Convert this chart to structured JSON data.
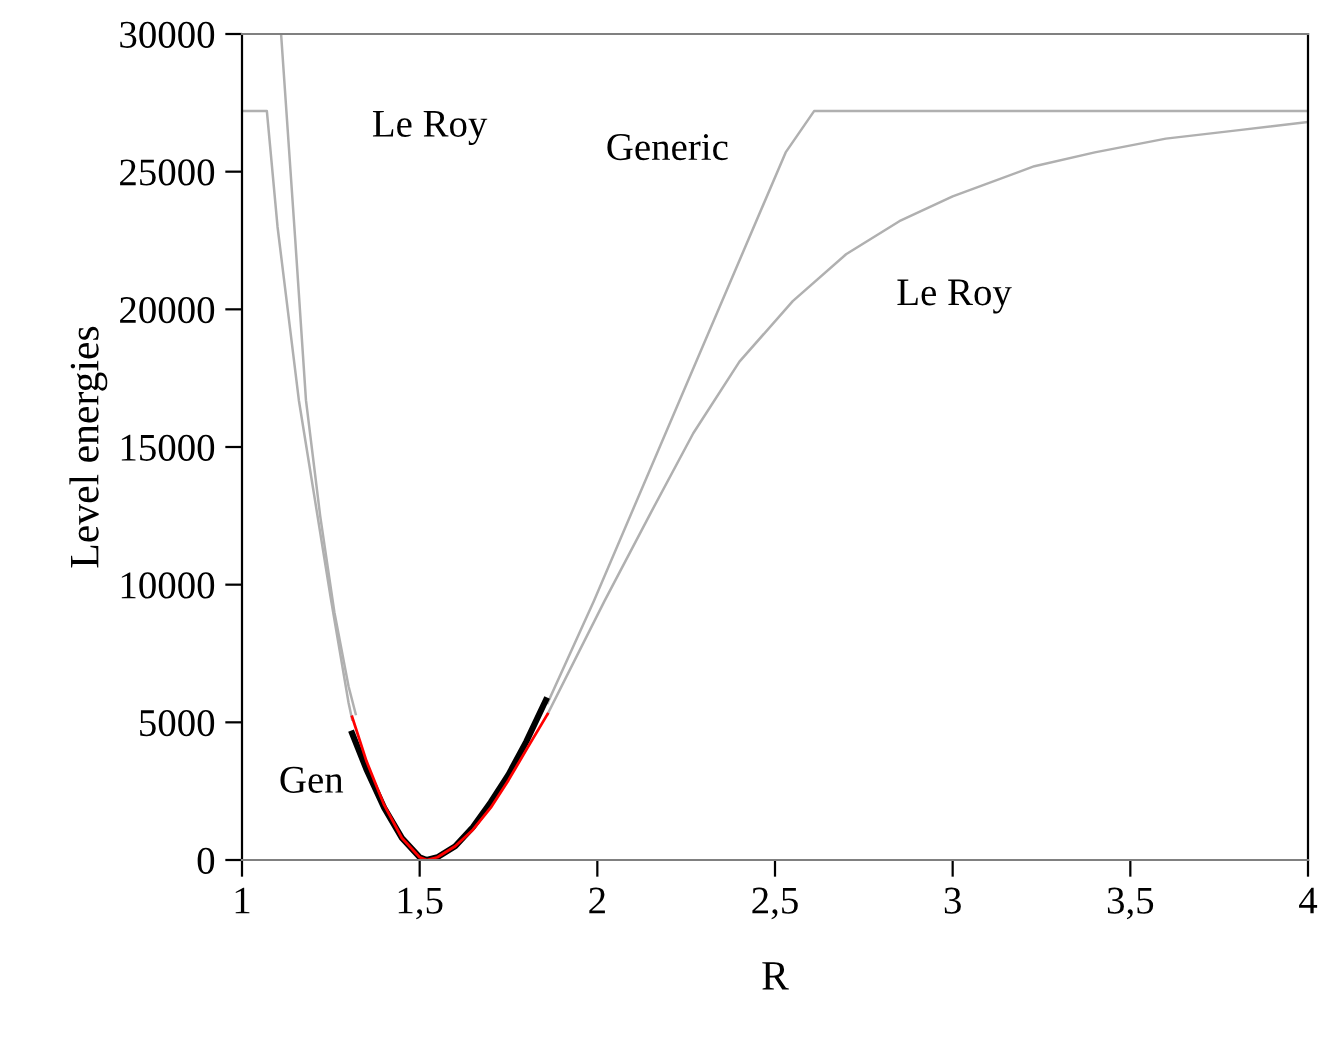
{
  "chart_data": {
    "type": "line",
    "xlabel": "R",
    "ylabel": "Level energies",
    "xlim": [
      1,
      4
    ],
    "ylim": [
      0,
      30000
    ],
    "xticks": [
      1,
      {
        "value": 1.5,
        "label": "1,5"
      },
      2,
      {
        "value": 2.5,
        "label": "2,5"
      },
      3,
      {
        "value": 3.5,
        "label": "3,5"
      },
      4
    ],
    "yticks": [
      0,
      5000,
      10000,
      15000,
      20000,
      25000,
      30000
    ],
    "grid": false,
    "legend": false,
    "marker": "none",
    "line_style": "solid",
    "series": [
      {
        "color": "#b0b0b0",
        "x": [
          1.0,
          1.07,
          1.1,
          1.16,
          1.2,
          1.25,
          1.3,
          1.31
        ],
        "values": [
          27200,
          27200,
          23000,
          16700,
          13500,
          9500,
          5700,
          5100
        ]
      },
      {
        "color": "#b0b0b0",
        "x": [
          1.11,
          1.15,
          1.18,
          1.22,
          1.26,
          1.3,
          1.32
        ],
        "values": [
          30000,
          22500,
          16700,
          12500,
          9000,
          6300,
          5300
        ]
      },
      {
        "color": "#b0b0b0",
        "x": [
          1.86,
          1.99,
          2.53,
          2.61,
          4.0
        ],
        "values": [
          5700,
          9400,
          25700,
          27200,
          27200
        ]
      },
      {
        "color": "#b0b0b0",
        "x": [
          1.86,
          2.02,
          2.15,
          2.27,
          2.4,
          2.55,
          2.7,
          2.85,
          3.0,
          3.23,
          3.4,
          3.6,
          3.8,
          4.0
        ],
        "values": [
          5300,
          9400,
          12600,
          15500,
          18100,
          20300,
          22000,
          23200,
          24100,
          25200,
          25700,
          26200,
          26500,
          26800
        ]
      },
      {
        "color": "#000000",
        "x": [
          1.31,
          1.35,
          1.4,
          1.45,
          1.5,
          1.52,
          1.55,
          1.6,
          1.65,
          1.7,
          1.75,
          1.8,
          1.855
        ],
        "values": [
          4600,
          3300,
          1900,
          800,
          100,
          0,
          100,
          500,
          1200,
          2100,
          3100,
          4300,
          5800
        ]
      },
      {
        "color": "#ff0000",
        "x": [
          1.31,
          1.35,
          1.4,
          1.45,
          1.5,
          1.52,
          1.55,
          1.6,
          1.65,
          1.7,
          1.75,
          1.8,
          1.86
        ],
        "values": [
          5200,
          3600,
          2000,
          800,
          100,
          0,
          100,
          500,
          1100,
          1900,
          2900,
          4000,
          5300
        ]
      }
    ],
    "annotations": [
      "Le Roy",
      "Generic",
      "Le Roy",
      "Gen"
    ]
  }
}
